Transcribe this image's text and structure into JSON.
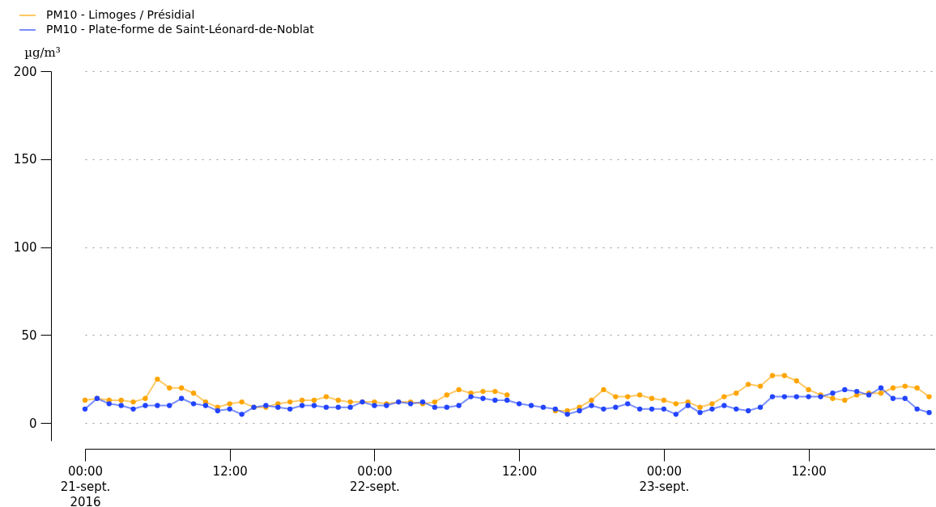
{
  "chart_data": {
    "type": "line",
    "ylabel": "µg/m³",
    "x": [
      "2016-09-21T00:00",
      "2016-09-21T01:00",
      "2016-09-21T02:00",
      "2016-09-21T03:00",
      "2016-09-21T04:00",
      "2016-09-21T05:00",
      "2016-09-21T06:00",
      "2016-09-21T07:00",
      "2016-09-21T08:00",
      "2016-09-21T09:00",
      "2016-09-21T10:00",
      "2016-09-21T11:00",
      "2016-09-21T12:00",
      "2016-09-21T13:00",
      "2016-09-21T14:00",
      "2016-09-21T15:00",
      "2016-09-21T16:00",
      "2016-09-21T17:00",
      "2016-09-21T18:00",
      "2016-09-21T19:00",
      "2016-09-21T20:00",
      "2016-09-21T21:00",
      "2016-09-21T22:00",
      "2016-09-21T23:00",
      "2016-09-22T00:00",
      "2016-09-22T01:00",
      "2016-09-22T02:00",
      "2016-09-22T03:00",
      "2016-09-22T04:00",
      "2016-09-22T05:00",
      "2016-09-22T06:00",
      "2016-09-22T07:00",
      "2016-09-22T08:00",
      "2016-09-22T09:00",
      "2016-09-22T10:00",
      "2016-09-22T11:00",
      "2016-09-22T12:00",
      "2016-09-22T13:00",
      "2016-09-22T14:00",
      "2016-09-22T15:00",
      "2016-09-22T16:00",
      "2016-09-22T17:00",
      "2016-09-22T18:00",
      "2016-09-22T19:00",
      "2016-09-22T20:00",
      "2016-09-22T21:00",
      "2016-09-22T22:00",
      "2016-09-22T23:00",
      "2016-09-23T00:00",
      "2016-09-23T01:00",
      "2016-09-23T02:00",
      "2016-09-23T03:00",
      "2016-09-23T04:00",
      "2016-09-23T05:00",
      "2016-09-23T06:00",
      "2016-09-23T07:00",
      "2016-09-23T08:00",
      "2016-09-23T09:00",
      "2016-09-23T10:00",
      "2016-09-23T11:00",
      "2016-09-23T12:00",
      "2016-09-23T13:00",
      "2016-09-23T14:00",
      "2016-09-23T15:00",
      "2016-09-23T16:00",
      "2016-09-23T17:00",
      "2016-09-23T18:00",
      "2016-09-23T19:00",
      "2016-09-23T20:00",
      "2016-09-23T21:00",
      "2016-09-23T22:00"
    ],
    "series": [
      {
        "name": "PM10 - Limoges / Présidial",
        "color": "#ffa500",
        "values": [
          13,
          14,
          13,
          13,
          12,
          14,
          25,
          20,
          20,
          17,
          12,
          9,
          11,
          12,
          9,
          9,
          11,
          12,
          13,
          13,
          15,
          13,
          12,
          12,
          12,
          11,
          12,
          12,
          11,
          12,
          16,
          19,
          17,
          18,
          18,
          16,
          null,
          null,
          null,
          7,
          7,
          9,
          13,
          19,
          15,
          15,
          16,
          14,
          13,
          11,
          12,
          9,
          11,
          15,
          17,
          22,
          21,
          27,
          27,
          24,
          19,
          16,
          14,
          13,
          16,
          17,
          17,
          20,
          21,
          20,
          15
        ]
      },
      {
        "name": "PM10 - Plate-forme de Saint-Léonard-de-Noblat",
        "color": "#2244ff",
        "values": [
          8,
          14,
          11,
          10,
          8,
          10,
          10,
          10,
          14,
          11,
          10,
          7,
          8,
          5,
          9,
          10,
          9,
          8,
          10,
          10,
          9,
          9,
          9,
          12,
          10,
          10,
          12,
          11,
          12,
          9,
          9,
          10,
          15,
          14,
          13,
          13,
          11,
          10,
          9,
          8,
          5,
          7,
          10,
          8,
          9,
          11,
          8,
          8,
          8,
          5,
          10,
          6,
          8,
          10,
          8,
          7,
          9,
          15,
          15,
          15,
          15,
          15,
          17,
          19,
          18,
          16,
          20,
          14,
          14,
          8,
          6
        ]
      }
    ],
    "xlim": [
      "2016-09-21T00:00",
      "2016-09-23T22:30"
    ],
    "xticks": [
      {
        "value": "2016-09-21T00:00",
        "label": "00:00\n21-sept.\n2016"
      },
      {
        "value": "2016-09-21T12:00",
        "label": "12:00"
      },
      {
        "value": "2016-09-22T00:00",
        "label": "00:00\n22-sept."
      },
      {
        "value": "2016-09-22T12:00",
        "label": "12:00"
      },
      {
        "value": "2016-09-23T00:00",
        "label": "00:00\n23-sept."
      },
      {
        "value": "2016-09-23T12:00",
        "label": "12:00"
      }
    ],
    "ylim": [
      -10,
      200
    ],
    "yticks": [
      0,
      50,
      100,
      150,
      200
    ],
    "grid": "y",
    "legend": "top left",
    "marker": "circle",
    "line_style": "solid"
  }
}
